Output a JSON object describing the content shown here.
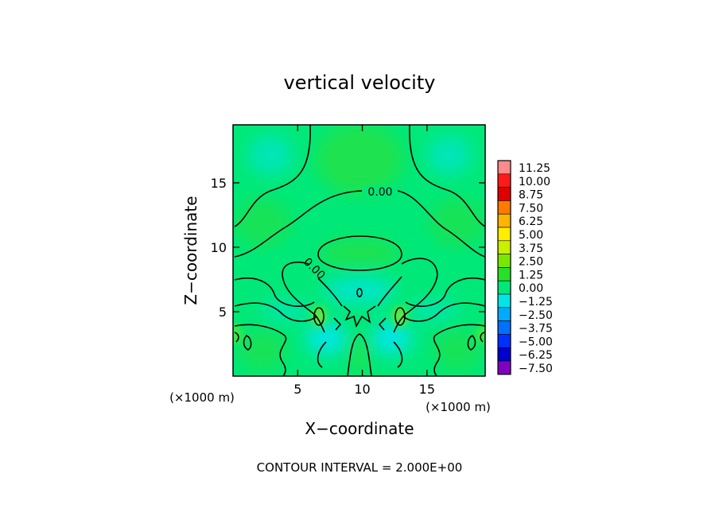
{
  "chart_data": {
    "type": "heatmap",
    "title": "vertical velocity",
    "xlabel": "X−coordinate",
    "ylabel": "Z−coordinate",
    "x_unit": "(×1000 m)",
    "z_unit": "(×1000 m)",
    "xlim": [
      0,
      19.5
    ],
    "ylim": [
      0,
      19.5
    ],
    "x_ticks": [
      5,
      10,
      15
    ],
    "y_ticks": [
      5,
      10,
      15
    ],
    "x_tick_labels": [
      "5",
      "10",
      "15"
    ],
    "y_tick_labels": [
      "5",
      "10",
      "15"
    ],
    "contour_interval_label": "CONTOUR INTERVAL = 2.000E+00",
    "contour_labels": [
      "0.00",
      "0.00",
      "0.00"
    ],
    "colorbar": {
      "levels": [
        11.25,
        10.0,
        8.75,
        7.5,
        6.25,
        5.0,
        3.75,
        2.5,
        1.25,
        0.0,
        -1.25,
        -2.5,
        -3.75,
        -5.0,
        -6.25,
        -7.5
      ],
      "labels": [
        "11.25",
        "10.00",
        "8.75",
        "7.50",
        "6.25",
        "5.00",
        "3.75",
        "2.50",
        "1.25",
        "0.00",
        "−1.25",
        "−2.50",
        "−3.75",
        "−5.00",
        "−6.25",
        "−7.50"
      ],
      "colors": [
        "#ff8a8a",
        "#ff1a1a",
        "#e00000",
        "#ff7a00",
        "#ffb400",
        "#ffee00",
        "#c8f000",
        "#78e800",
        "#28e028",
        "#00e878",
        "#00e6e6",
        "#00aaff",
        "#0070ff",
        "#0030ff",
        "#0000d0",
        "#8000c0"
      ]
    },
    "background_level_color": "#00e878",
    "positive_region_color": "#20dd40",
    "negative_region_color": "#00e6e6",
    "grid": false
  }
}
